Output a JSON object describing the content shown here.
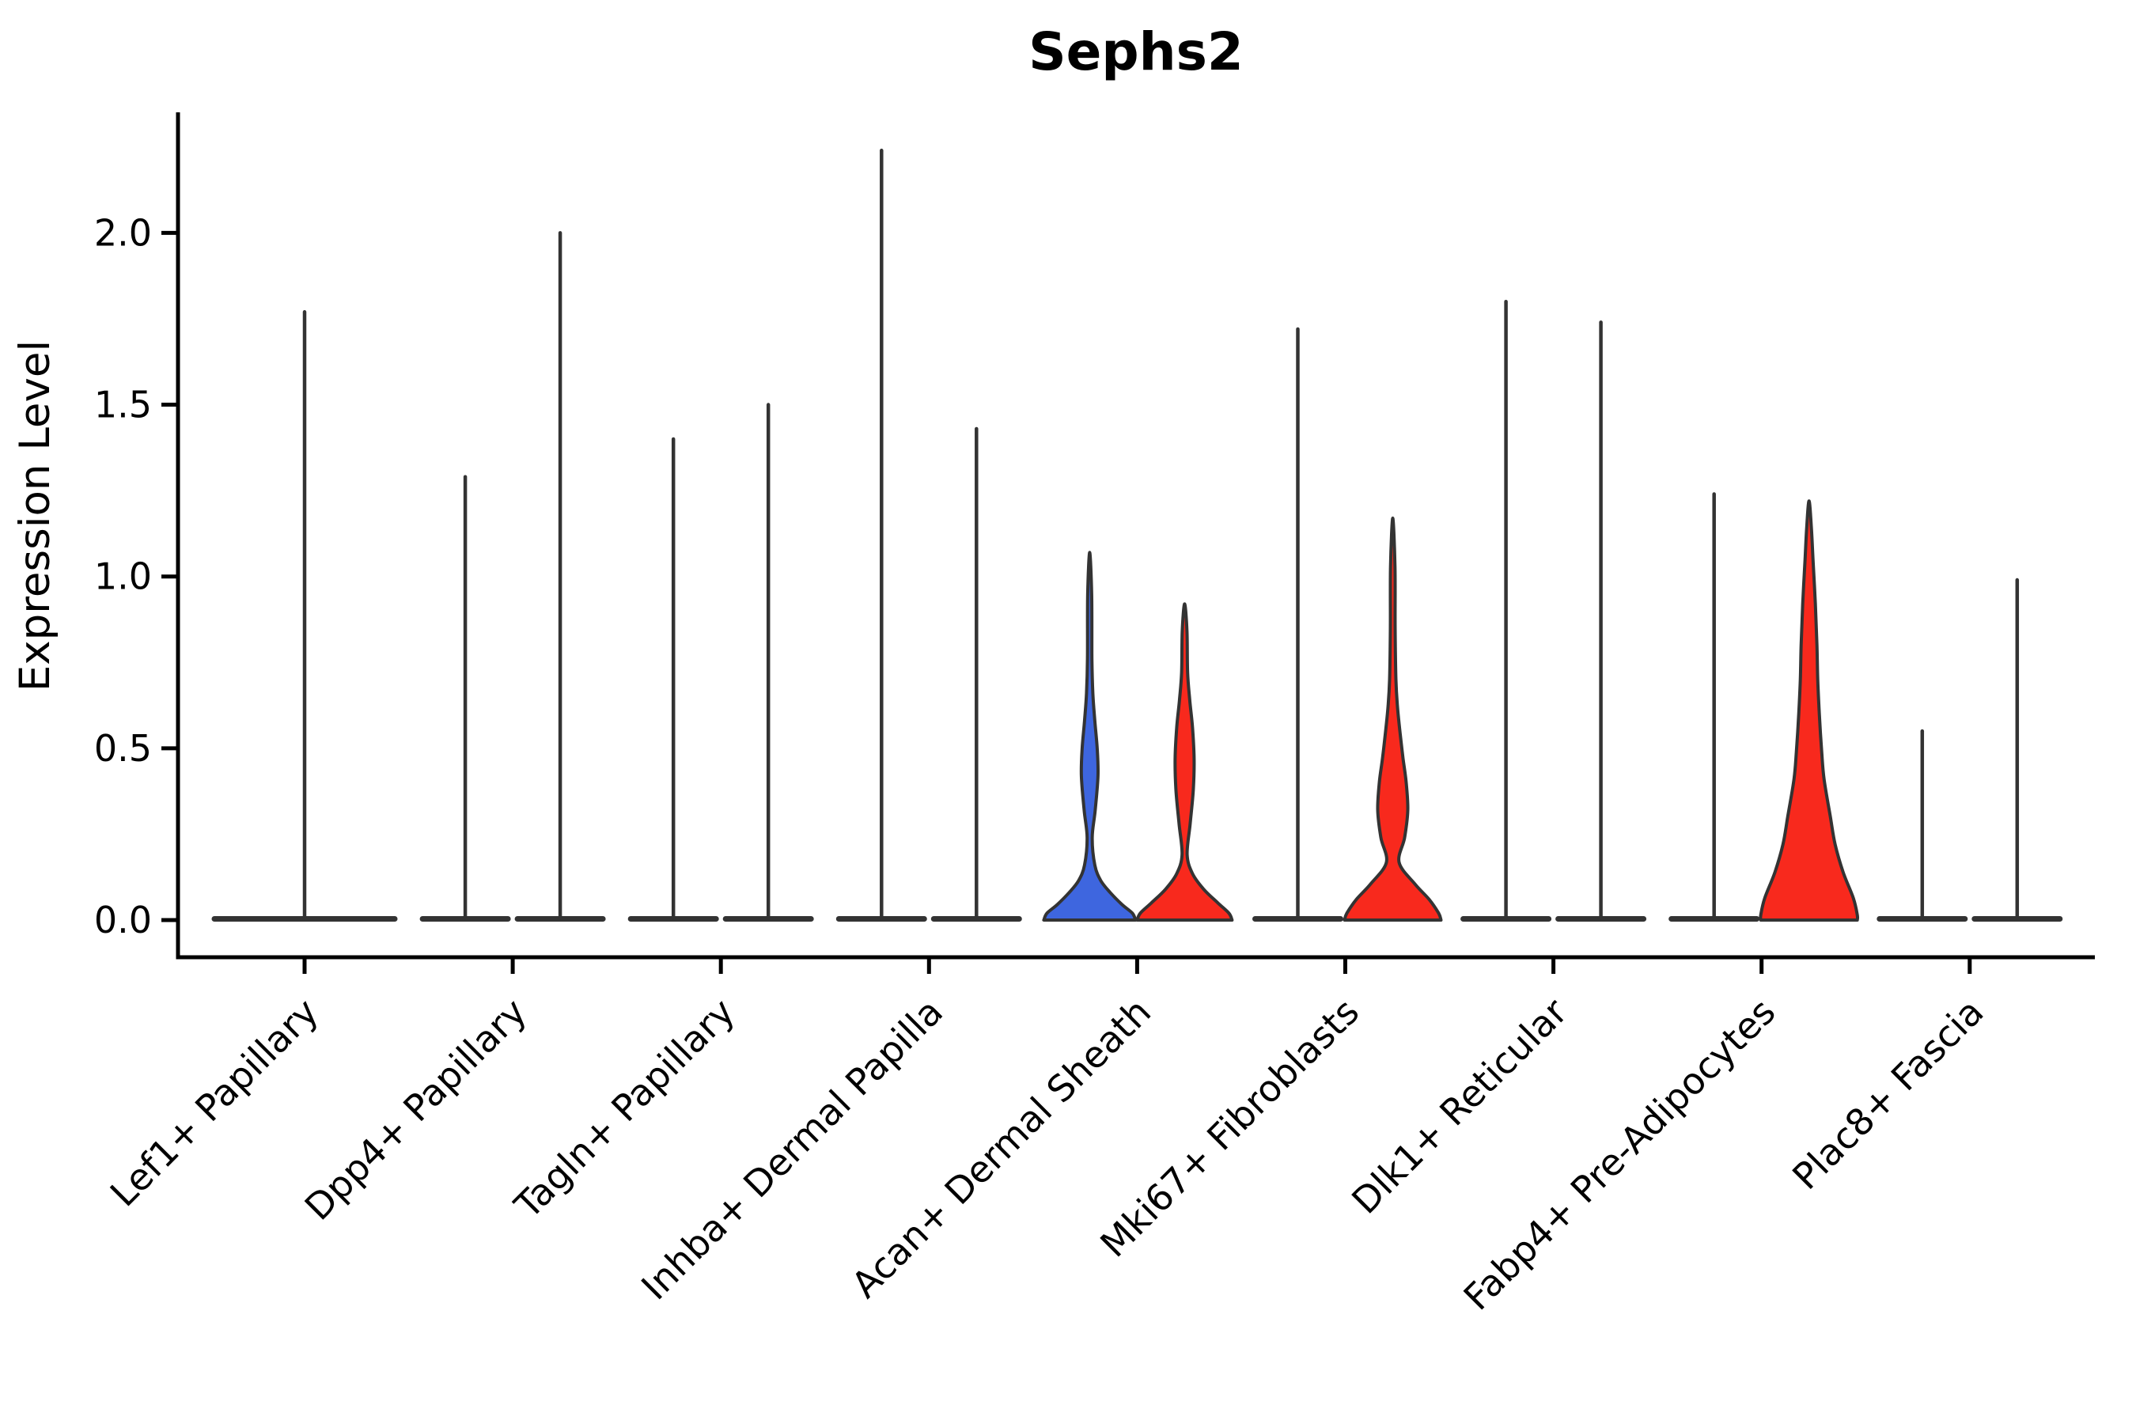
{
  "figure": {
    "background": "#ffffff",
    "axis_color": "#000000",
    "violin_edge_color": "#333333"
  },
  "chart_data": {
    "type": "violin",
    "title": "Sephs2",
    "xlabel": "",
    "ylabel": "Expression Level",
    "ylim": [
      0,
      2.35
    ],
    "grid": false,
    "legend": "none",
    "yticks": [
      {
        "label": "0.0",
        "value": 0.0
      },
      {
        "label": "0.5",
        "value": 0.5
      },
      {
        "label": "1.0",
        "value": 1.0
      },
      {
        "label": "1.5",
        "value": 1.5
      },
      {
        "label": "2.0",
        "value": 2.0
      }
    ],
    "categories": [
      "Lef1+ Papillary",
      "Dpp4+ Papillary",
      "Tagln+ Papillary",
      "Inhba+ Dermal Papilla",
      "Acan+ Dermal Sheath",
      "Mki67+ Fibroblasts",
      "Dlk1+ Reticular",
      "Fabp4+ Pre-Adipocytes",
      "Plac8+ Fascia"
    ],
    "colors": {
      "group_blue": "#3E66DF",
      "group_red": "#F8291D",
      "unfilled_spike": "#333333"
    },
    "violins": [
      {
        "category_index": 0,
        "slot": "single",
        "style": "spike",
        "max": 1.77,
        "fill": null
      },
      {
        "category_index": 1,
        "slot": "left",
        "style": "spike",
        "max": 1.29,
        "fill": null
      },
      {
        "category_index": 1,
        "slot": "right",
        "style": "spike",
        "max": 2.0,
        "fill": null
      },
      {
        "category_index": 2,
        "slot": "left",
        "style": "spike",
        "max": 1.4,
        "fill": null
      },
      {
        "category_index": 2,
        "slot": "right",
        "style": "spike",
        "max": 1.5,
        "fill": null
      },
      {
        "category_index": 3,
        "slot": "left",
        "style": "spike",
        "max": 2.24,
        "fill": null
      },
      {
        "category_index": 3,
        "slot": "right",
        "style": "spike",
        "max": 1.43,
        "fill": null
      },
      {
        "category_index": 4,
        "slot": "left",
        "style": "filled",
        "max": 1.07,
        "fill": "#3E66DF",
        "profile": [
          [
            0,
            58
          ],
          [
            0.02,
            54
          ],
          [
            0.045,
            41
          ],
          [
            0.08,
            26
          ],
          [
            0.115,
            14
          ],
          [
            0.16,
            6.5
          ],
          [
            0.24,
            3.2
          ],
          [
            0.32,
            7
          ],
          [
            0.42,
            10.5
          ],
          [
            0.5,
            9.5
          ],
          [
            0.58,
            6.5
          ],
          [
            0.66,
            4
          ],
          [
            0.76,
            2.8
          ],
          [
            0.95,
            2.5
          ],
          [
            1.07,
            0
          ]
        ]
      },
      {
        "category_index": 4,
        "slot": "right",
        "style": "filled",
        "max": 0.92,
        "fill": "#F8291D",
        "profile": [
          [
            0,
            60
          ],
          [
            0.02,
            56
          ],
          [
            0.05,
            42
          ],
          [
            0.09,
            24
          ],
          [
            0.135,
            10
          ],
          [
            0.19,
            3.2
          ],
          [
            0.28,
            7
          ],
          [
            0.38,
            11
          ],
          [
            0.47,
            12
          ],
          [
            0.56,
            10
          ],
          [
            0.64,
            6.5
          ],
          [
            0.72,
            3.8
          ],
          [
            0.84,
            3
          ],
          [
            0.92,
            0
          ]
        ]
      },
      {
        "category_index": 5,
        "slot": "left",
        "style": "spike",
        "max": 1.72,
        "fill": null
      },
      {
        "category_index": 5,
        "slot": "right",
        "style": "filled",
        "max": 1.17,
        "fill": "#F8291D",
        "profile": [
          [
            0,
            61
          ],
          [
            0.02,
            58
          ],
          [
            0.06,
            46
          ],
          [
            0.105,
            28
          ],
          [
            0.168,
            8
          ],
          [
            0.24,
            15
          ],
          [
            0.32,
            19
          ],
          [
            0.4,
            17
          ],
          [
            0.47,
            13
          ],
          [
            0.54,
            9.5
          ],
          [
            0.62,
            6
          ],
          [
            0.7,
            4
          ],
          [
            0.85,
            3
          ],
          [
            1.03,
            2.8
          ],
          [
            1.17,
            0
          ]
        ]
      },
      {
        "category_index": 6,
        "slot": "left",
        "style": "spike",
        "max": 1.8,
        "fill": null
      },
      {
        "category_index": 6,
        "slot": "right",
        "style": "spike",
        "max": 1.74,
        "fill": null
      },
      {
        "category_index": 7,
        "slot": "left",
        "style": "spike",
        "max": 1.24,
        "fill": null
      },
      {
        "category_index": 7,
        "slot": "right",
        "style": "filled",
        "max": 1.22,
        "fill": "#F8291D",
        "profile": [
          [
            0,
            61
          ],
          [
            0.015,
            61
          ],
          [
            0.064,
            56
          ],
          [
            0.14,
            43
          ],
          [
            0.22,
            33
          ],
          [
            0.3,
            27
          ],
          [
            0.41,
            19
          ],
          [
            0.49,
            16
          ],
          [
            0.6,
            13
          ],
          [
            0.7,
            11
          ],
          [
            0.8,
            10
          ],
          [
            0.92,
            8
          ],
          [
            1.05,
            5
          ],
          [
            1.14,
            3
          ],
          [
            1.22,
            0
          ]
        ]
      },
      {
        "category_index": 8,
        "slot": "left",
        "style": "spike",
        "max": 0.55,
        "fill": null
      },
      {
        "category_index": 8,
        "slot": "right",
        "style": "spike",
        "max": 0.99,
        "fill": null
      }
    ]
  }
}
